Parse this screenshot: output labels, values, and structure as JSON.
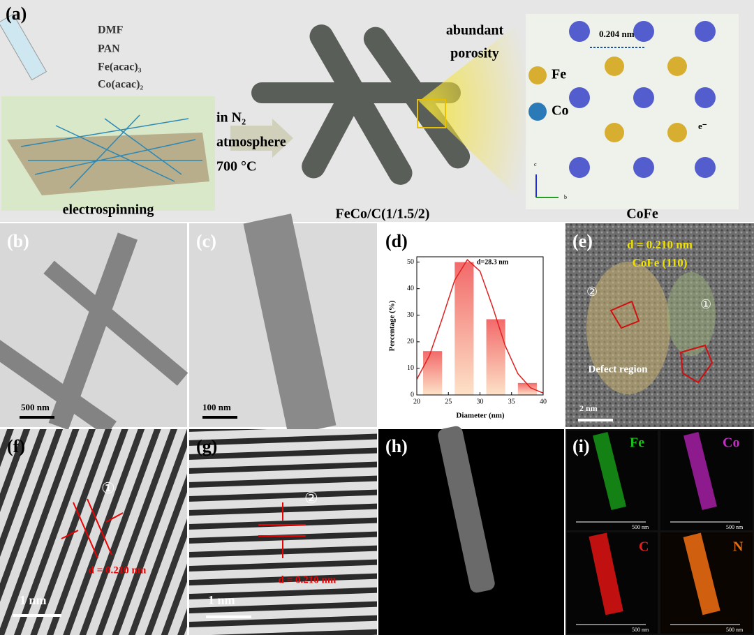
{
  "panel_a": {
    "label": "(a)",
    "precursors": [
      "DMF",
      "PAN",
      "Fe(acac)₃",
      "Co(acac)₂"
    ],
    "process": "electrospinning",
    "conditions": [
      "in N₂",
      "atmosphere",
      "700 °C"
    ],
    "porosity": [
      "abundant",
      "porosity"
    ],
    "product": "FeCo/C(1/1.5/2)",
    "spacing": "0.204 nm",
    "fe": "Fe",
    "co": "Co",
    "electron": "e⁻",
    "crystal": "CoFe",
    "axes": [
      "c",
      "b"
    ]
  },
  "panel_b": {
    "label": "(b)",
    "scale": "500 nm"
  },
  "panel_c": {
    "label": "(c)",
    "scale": "100 nm"
  },
  "panel_e": {
    "label": "(e)",
    "spacing": "d = 0.210 nm",
    "plane": "CoFe (110)",
    "defect": "Defect region",
    "mark_1": "①",
    "mark_2": "②",
    "scale": "2 nm"
  },
  "panel_f": {
    "label": "(f)",
    "mark": "①",
    "spacing": "d = 0.210 nm",
    "scale": "1 nm"
  },
  "panel_g": {
    "label": "(g)",
    "mark": "②",
    "spacing": "d = 0.210 nm",
    "scale": "1 nm"
  },
  "panel_h": {
    "label": "(h)"
  },
  "panel_i": {
    "label": "(i)",
    "maps": [
      "Fe",
      "Co",
      "C",
      "N"
    ],
    "scales": [
      "500 nm",
      "500 nm",
      "500 nm",
      "500 nm"
    ]
  },
  "chart_data": {
    "type": "histogram",
    "label": "(d)",
    "annotation": "d=28.3 nm",
    "x_label": "Diameter (nm)",
    "y_label": "Percentage (%)",
    "bins": [
      20,
      25,
      30,
      35,
      40
    ],
    "values": [
      16.5,
      50,
      28.5,
      4.5
    ],
    "color": "#f26a6a",
    "fit": {
      "x": [
        20,
        22,
        24,
        26,
        28,
        30,
        32,
        34,
        36,
        38,
        40
      ],
      "values": [
        5.9,
        14.8,
        28.6,
        43.2,
        50.9,
        46.6,
        33.2,
        18.5,
        8.0,
        2.7,
        0.7
      ],
      "color": "#e02020"
    },
    "xlim": [
      20,
      40
    ],
    "xticks": [
      20,
      25,
      30,
      35,
      40
    ],
    "ylim": [
      0,
      52
    ],
    "yticks": [
      0,
      10,
      20,
      30,
      40,
      50
    ]
  }
}
